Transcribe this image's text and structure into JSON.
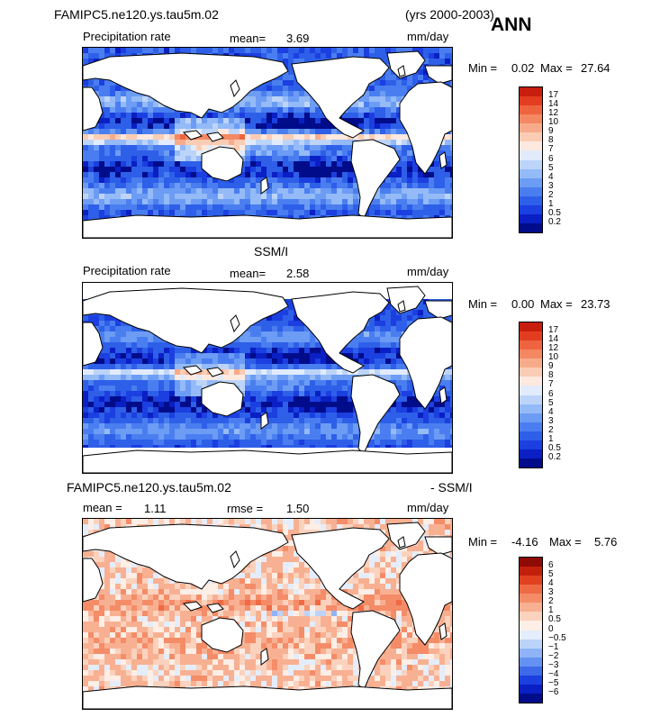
{
  "header": {
    "case_name": "FAMIPC5.ne120.ys.tau5m.02",
    "years": "(yrs 2000-2003)",
    "season": "ANN"
  },
  "colors": {
    "land": "#ffffff",
    "coast": "#000000",
    "precip_scale": [
      "#000c8a",
      "#0a1fc4",
      "#1b3fe0",
      "#2e5fe8",
      "#4a7ef0",
      "#6c9cf4",
      "#94baf7",
      "#bdd4f9",
      "#e1ebfb",
      "#fde9df",
      "#fbccb4",
      "#f8ab8a",
      "#f48862",
      "#ee6440",
      "#e33d20",
      "#c81e0e",
      "#8e0a04"
    ],
    "diff_scale": [
      "#000c8a",
      "#0a1fc4",
      "#1b3fe0",
      "#3c6ae8",
      "#6592f2",
      "#8fb3f6",
      "#bcd3f9",
      "#e4edfb",
      "#fdeee6",
      "#fbd2bd",
      "#f8b092",
      "#f48c68",
      "#ee6a45",
      "#e0421f",
      "#c2200c",
      "#8e0a04"
    ]
  },
  "chart_data": [
    {
      "type": "heatmap",
      "title": "Precipitation rate",
      "mean_label": "mean=",
      "mean_value": "3.69",
      "units": "mm/day",
      "min_label": "Min =",
      "min_value": "0.02",
      "max_label": "Max =",
      "max_value": "27.64",
      "colorbar_levels": [
        "0.2",
        "0.5",
        "1",
        "2",
        "3",
        "4",
        "5",
        "6",
        "7",
        "8",
        "9",
        "10",
        "12",
        "14",
        "17"
      ]
    },
    {
      "type": "heatmap",
      "panel_title": "SSM/I",
      "title": "Precipitation rate",
      "mean_label": "mean=",
      "mean_value": "2.58",
      "units": "mm/day",
      "min_label": "Min =",
      "min_value": "0.00",
      "max_label": "Max =",
      "max_value": "23.73",
      "colorbar_levels": [
        "0.2",
        "0.5",
        "1",
        "2",
        "3",
        "4",
        "5",
        "6",
        "7",
        "8",
        "9",
        "10",
        "12",
        "14",
        "17"
      ]
    },
    {
      "type": "heatmap",
      "panel_title_left": "FAMIPC5.ne120.ys.tau5m.02",
      "panel_title_right": "- SSM/I",
      "mean_label": "mean =",
      "mean_value": "1.11",
      "rmse_label": "rmse =",
      "rmse_value": "1.50",
      "units": "mm/day",
      "min_label": "Min =",
      "min_value": "-4.16",
      "max_label": "Max =",
      "max_value": "5.76",
      "colorbar_levels": [
        "−6",
        "−5",
        "−4",
        "−3",
        "−2",
        "−1",
        "−0.5",
        "0",
        "0.5",
        "1",
        "2",
        "3",
        "4",
        "5",
        "6"
      ]
    }
  ]
}
